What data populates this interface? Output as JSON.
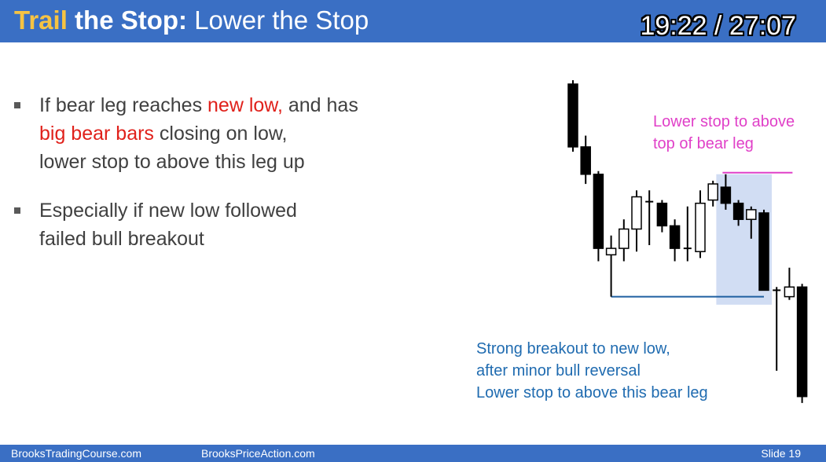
{
  "header": {
    "title_part1": "Trail",
    "title_part2": " the Stop:",
    "title_part3": " Lower the Stop",
    "timer": "19:22 / 27:07"
  },
  "bullets": [
    {
      "segments": [
        {
          "text": "If bear leg reaches ",
          "color": "normal"
        },
        {
          "text": "new low,",
          "color": "red"
        },
        {
          "text": " and has",
          "color": "normal"
        },
        {
          "text": "big bear bars",
          "color": "red",
          "br": true
        },
        {
          "text": " closing on low,",
          "color": "normal"
        },
        {
          "text": "lower stop to above this leg up",
          "color": "normal",
          "br": true
        }
      ]
    },
    {
      "segments": [
        {
          "text": "Especially if new low followed",
          "color": "normal"
        },
        {
          "text": "failed bull breakout",
          "color": "normal",
          "br": true
        }
      ]
    }
  ],
  "annotations": {
    "pink_line1": "Lower stop to above",
    "pink_line2": "top of bear leg",
    "blue_line1": "Strong breakout to new low,",
    "blue_line2": "after minor bull reversal",
    "blue_line3": "Lower stop to above this bear leg"
  },
  "footer": {
    "left": "BrooksTradingCourse.com",
    "center": "BrooksPriceAction.com",
    "slide": "Slide  19"
  },
  "colors": {
    "header_bg": "#3a6fc4",
    "title_accent": "#f6c343",
    "red": "#e0211b",
    "pink": "#e040c8",
    "blue_text": "#1f6bb0",
    "highlight": "#c5d5f0"
  },
  "chart_data": {
    "type": "candlestick",
    "title": "",
    "price_scale": "unlabeled",
    "bars": [
      {
        "o": 100,
        "h": 101.2,
        "l": 79,
        "c": 80.5,
        "dir": "bear"
      },
      {
        "o": 80.5,
        "h": 84,
        "l": 69,
        "c": 72,
        "dir": "bear"
      },
      {
        "o": 72,
        "h": 73,
        "l": 45,
        "c": 49,
        "dir": "bear"
      },
      {
        "o": 49,
        "h": 53,
        "l": 34,
        "c": 47,
        "dir": "bull"
      },
      {
        "o": 49,
        "h": 58,
        "l": 45,
        "c": 55,
        "dir": "bull"
      },
      {
        "o": 55,
        "h": 67,
        "l": 48,
        "c": 65,
        "dir": "bull"
      },
      {
        "o": 63,
        "h": 67,
        "l": 50,
        "c": 63.5,
        "dir": "doji"
      },
      {
        "o": 63,
        "h": 64,
        "l": 54,
        "c": 56,
        "dir": "bear"
      },
      {
        "o": 56,
        "h": 58,
        "l": 45,
        "c": 49,
        "dir": "bear"
      },
      {
        "o": 48,
        "h": 62,
        "l": 45,
        "c": 49,
        "dir": "doji"
      },
      {
        "o": 48,
        "h": 67,
        "l": 46,
        "c": 63,
        "dir": "bull"
      },
      {
        "o": 64,
        "h": 70,
        "l": 62,
        "c": 69,
        "dir": "bull"
      },
      {
        "o": 68,
        "h": 72,
        "l": 61,
        "c": 63,
        "dir": "bear"
      },
      {
        "o": 63,
        "h": 64,
        "l": 56,
        "c": 58,
        "dir": "bear"
      },
      {
        "o": 58,
        "h": 62,
        "l": 52,
        "c": 61,
        "dir": "bull"
      },
      {
        "o": 60,
        "h": 61,
        "l": 36,
        "c": 36,
        "dir": "bear"
      },
      {
        "o": 36,
        "h": 37,
        "l": 11,
        "c": 35.5,
        "dir": "doji"
      },
      {
        "o": 34,
        "h": 43,
        "l": 33,
        "c": 37,
        "dir": "bull"
      },
      {
        "o": 37,
        "h": 38,
        "l": 1,
        "c": 3,
        "dir": "bear"
      }
    ],
    "support_line_level": 34,
    "stop_line_level": 72.5,
    "highlight_range": {
      "from_bar": 12,
      "to_bar": 15
    }
  }
}
